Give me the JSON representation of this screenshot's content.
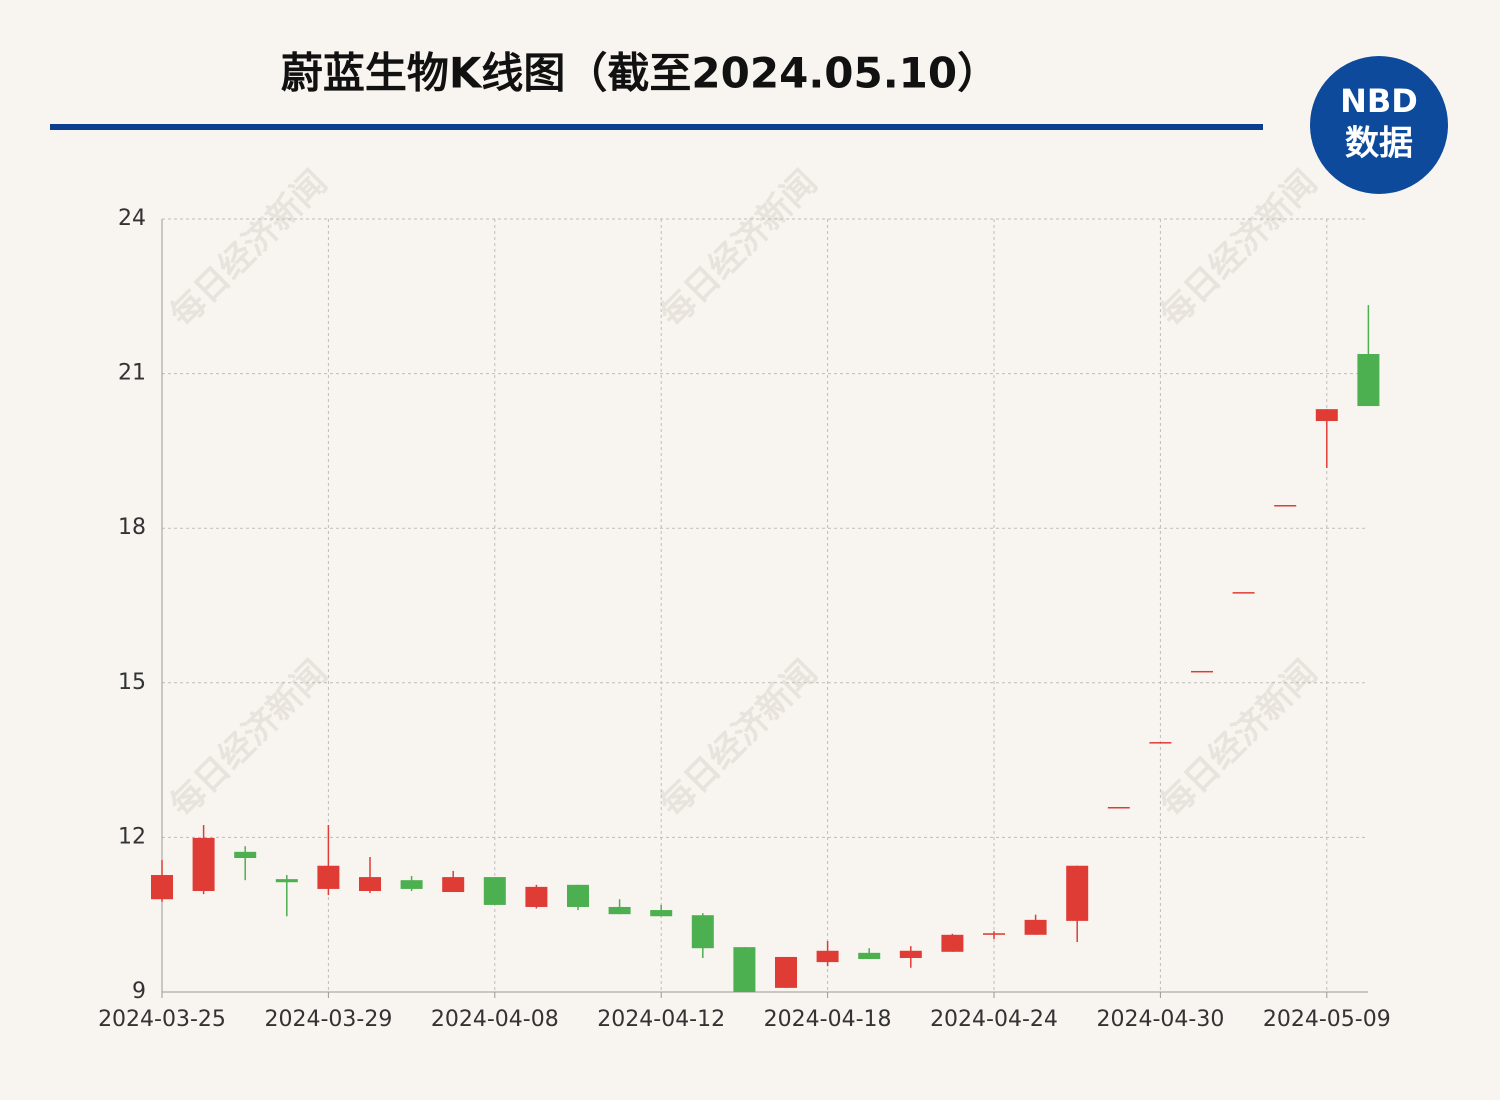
{
  "chart_data": {
    "type": "candlestick",
    "title": "蔚蓝生物K线图（截至2024.05.10）",
    "logo": {
      "top": "NBD",
      "bottom": "数据"
    },
    "watermark": "每日经济新闻",
    "categories": [
      "2024-03-25",
      null,
      null,
      null,
      "2024-03-29",
      null,
      null,
      null,
      "2024-04-08",
      null,
      null,
      null,
      "2024-04-12",
      null,
      null,
      null,
      "2024-04-18",
      null,
      null,
      null,
      "2024-04-24",
      null,
      null,
      null,
      "2024-04-30",
      null,
      null,
      null,
      "2024-05-09",
      null
    ],
    "open": [
      10.8,
      10.96,
      11.72,
      11.19,
      11.0,
      10.96,
      11.17,
      10.94,
      11.23,
      10.65,
      11.08,
      10.65,
      10.59,
      10.49,
      9.87,
      9.08,
      9.58,
      9.76,
      9.66,
      9.78,
      10.11,
      10.11,
      10.38,
      12.59,
      13.85,
      15.23,
      16.76,
      18.45,
      20.08,
      21.38
    ],
    "close": [
      11.27,
      11.99,
      11.6,
      11.13,
      11.45,
      11.23,
      11.0,
      11.23,
      10.69,
      11.04,
      10.65,
      10.51,
      10.47,
      9.85,
      9.0,
      9.68,
      9.8,
      9.64,
      9.8,
      10.11,
      10.14,
      10.4,
      11.45,
      12.59,
      13.85,
      15.23,
      16.76,
      18.45,
      20.31,
      20.37
    ],
    "high": [
      11.56,
      12.24,
      11.83,
      11.27,
      12.24,
      11.62,
      11.25,
      11.35,
      11.23,
      11.08,
      11.08,
      10.8,
      10.69,
      10.53,
      9.87,
      9.68,
      9.99,
      9.85,
      9.89,
      10.13,
      10.18,
      10.5,
      11.45,
      12.59,
      13.85,
      15.23,
      16.76,
      18.45,
      20.31,
      22.33
    ],
    "low": [
      10.75,
      10.9,
      11.17,
      10.47,
      10.88,
      10.92,
      10.96,
      10.94,
      10.69,
      10.62,
      10.59,
      10.51,
      10.47,
      9.66,
      9.0,
      9.08,
      9.5,
      9.64,
      9.47,
      9.78,
      10.03,
      10.11,
      9.97,
      12.59,
      13.85,
      15.23,
      16.76,
      18.45,
      19.17,
      20.37
    ],
    "up_color": "#e03c36",
    "down_color": "#4caf50",
    "ylim": [
      9,
      24
    ],
    "yticks": [
      9,
      12,
      15,
      18,
      21,
      24
    ],
    "grid": true
  }
}
